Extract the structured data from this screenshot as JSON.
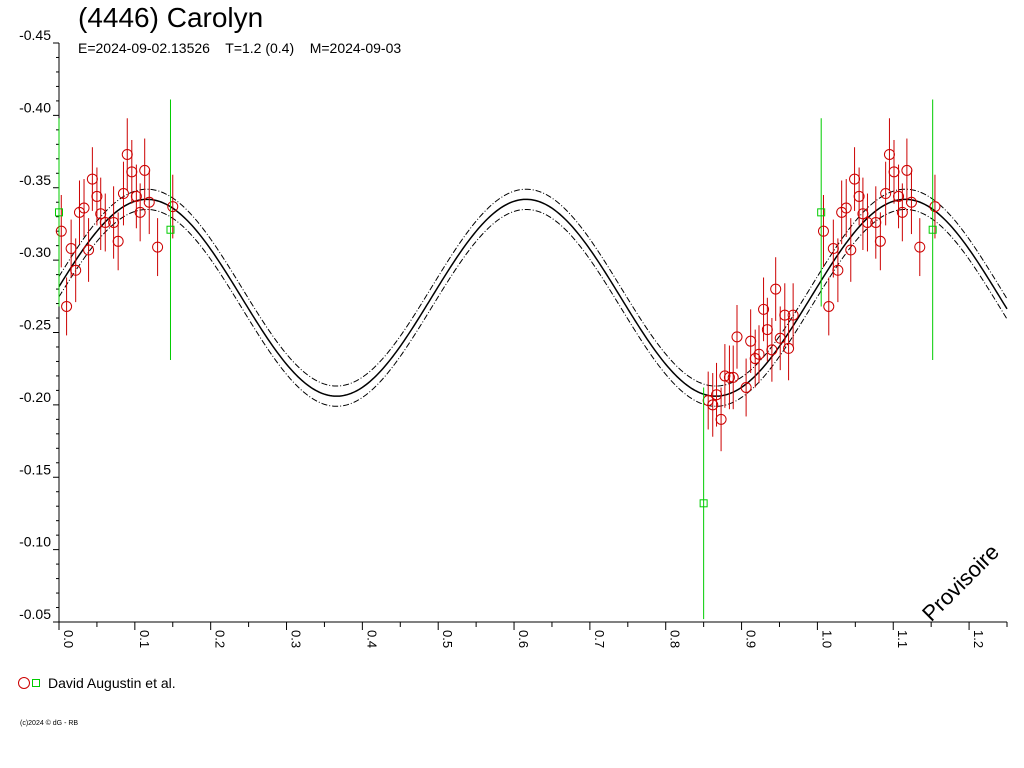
{
  "chart_data": {
    "type": "scatter",
    "title": "(4446) Carolyn",
    "subtitle": {
      "epoch": "E=2024-09-02.13526",
      "period": "T=1.2 (0.4)",
      "mid_date": "M=2024-09-03"
    },
    "xlim": [
      0.0,
      1.25
    ],
    "ylim": [
      -0.45,
      -0.05
    ],
    "y_inverted": true,
    "x_ticks": [
      "0.0",
      "0.1",
      "0.2",
      "0.3",
      "0.4",
      "0.5",
      "0.6",
      "0.7",
      "0.8",
      "0.9",
      "1.0",
      "1.1",
      "1.2"
    ],
    "y_ticks": [
      "-0.45",
      "-0.40",
      "-0.35",
      "-0.30",
      "-0.25",
      "-0.20",
      "-0.15",
      "-0.10",
      "-0.05"
    ],
    "grid": false,
    "legend_position": "bottom-left",
    "legend_label": "David Augustin et al.",
    "stamp": "Provisoire",
    "copyright": "(c)2024 © dG - RB",
    "colors": {
      "series1": "#cc0000",
      "series2": "#00cc00",
      "axis": "#000000"
    },
    "fit_curve": {
      "mean": -0.274,
      "amplitude": 0.068,
      "max_phase": 0.116,
      "band": 0.007
    },
    "series": [
      {
        "name": "David Augustin et al.",
        "marker": "circle",
        "color": "#cc0000",
        "points": [
          [
            0.003,
            -0.32,
            0.025
          ],
          [
            0.01,
            -0.268,
            0.02
          ],
          [
            0.016,
            -0.308,
            0.02
          ],
          [
            0.022,
            -0.293,
            0.022
          ],
          [
            0.027,
            -0.333,
            0.022
          ],
          [
            0.033,
            -0.336,
            0.02
          ],
          [
            0.039,
            -0.307,
            0.022
          ],
          [
            0.044,
            -0.356,
            0.022
          ],
          [
            0.05,
            -0.344,
            0.02
          ],
          [
            0.055,
            -0.332,
            0.025
          ],
          [
            0.061,
            -0.326,
            0.02
          ],
          [
            0.072,
            -0.326,
            0.025
          ],
          [
            0.078,
            -0.313,
            0.02
          ],
          [
            0.085,
            -0.346,
            0.022
          ],
          [
            0.09,
            -0.373,
            0.025
          ],
          [
            0.096,
            -0.361,
            0.022
          ],
          [
            0.102,
            -0.344,
            0.022
          ],
          [
            0.107,
            -0.333,
            0.02
          ],
          [
            0.113,
            -0.362,
            0.022
          ],
          [
            0.119,
            -0.34,
            0.022
          ],
          [
            0.13,
            -0.309,
            0.02
          ],
          [
            0.15,
            -0.337,
            0.022
          ],
          [
            0.856,
            -0.203,
            0.02
          ],
          [
            0.862,
            -0.2,
            0.022
          ],
          [
            0.867,
            -0.207,
            0.022
          ],
          [
            0.873,
            -0.19,
            0.022
          ],
          [
            0.878,
            -0.22,
            0.022
          ],
          [
            0.884,
            -0.219,
            0.022
          ],
          [
            0.889,
            -0.219,
            0.022
          ],
          [
            0.894,
            -0.247,
            0.022
          ],
          [
            0.906,
            -0.212,
            0.02
          ],
          [
            0.912,
            -0.244,
            0.022
          ],
          [
            0.918,
            -0.232,
            0.02
          ],
          [
            0.923,
            -0.235,
            0.02
          ],
          [
            0.929,
            -0.266,
            0.022
          ],
          [
            0.934,
            -0.252,
            0.022
          ],
          [
            0.94,
            -0.238,
            0.022
          ],
          [
            0.945,
            -0.28,
            0.022
          ],
          [
            0.951,
            -0.246,
            0.022
          ],
          [
            0.957,
            -0.262,
            0.022
          ],
          [
            0.962,
            -0.239,
            0.022
          ],
          [
            0.968,
            -0.262,
            0.022
          ],
          [
            1.008,
            -0.32,
            0.025
          ],
          [
            1.015,
            -0.268,
            0.02
          ],
          [
            1.021,
            -0.308,
            0.02
          ],
          [
            1.027,
            -0.293,
            0.022
          ],
          [
            1.032,
            -0.333,
            0.022
          ],
          [
            1.038,
            -0.336,
            0.02
          ],
          [
            1.044,
            -0.307,
            0.022
          ],
          [
            1.049,
            -0.356,
            0.022
          ],
          [
            1.055,
            -0.344,
            0.02
          ],
          [
            1.06,
            -0.332,
            0.025
          ],
          [
            1.066,
            -0.326,
            0.02
          ],
          [
            1.077,
            -0.326,
            0.025
          ],
          [
            1.083,
            -0.313,
            0.02
          ],
          [
            1.09,
            -0.346,
            0.022
          ],
          [
            1.095,
            -0.373,
            0.025
          ],
          [
            1.101,
            -0.361,
            0.022
          ],
          [
            1.107,
            -0.344,
            0.022
          ],
          [
            1.112,
            -0.333,
            0.02
          ],
          [
            1.118,
            -0.362,
            0.022
          ],
          [
            1.124,
            -0.34,
            0.022
          ],
          [
            1.135,
            -0.309,
            0.02
          ],
          [
            1.155,
            -0.337,
            0.022
          ]
        ]
      },
      {
        "name": "David Augustin et al.",
        "marker": "square",
        "color": "#00cc00",
        "points": [
          [
            0.0,
            -0.333,
            0.065
          ],
          [
            0.147,
            -0.321,
            0.09
          ],
          [
            0.85,
            -0.132,
            0.08
          ],
          [
            1.005,
            -0.333,
            0.065
          ],
          [
            1.152,
            -0.321,
            0.09
          ]
        ]
      }
    ]
  }
}
